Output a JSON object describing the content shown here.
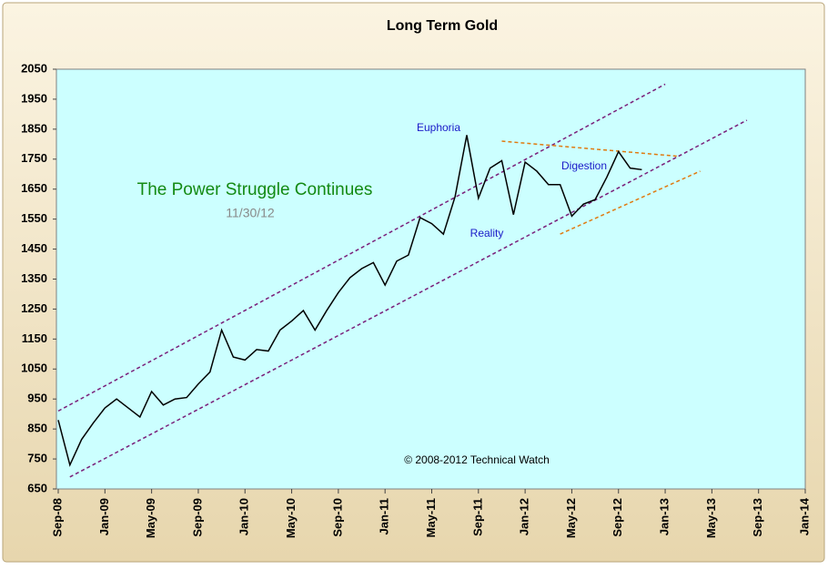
{
  "chart_data": {
    "type": "line",
    "title": "Long Term Gold",
    "annotations": [
      "The Power Struggle Continues",
      "11/30/12",
      "Euphoria",
      "Reality",
      "Digestion",
      "© 2008-2012 Technical Watch"
    ],
    "x": [
      "2008-09",
      "2008-10",
      "2008-11",
      "2008-12",
      "2009-01",
      "2009-02",
      "2009-03",
      "2009-04",
      "2009-05",
      "2009-06",
      "2009-07",
      "2009-08",
      "2009-09",
      "2009-10",
      "2009-11",
      "2009-12",
      "2010-01",
      "2010-02",
      "2010-03",
      "2010-04",
      "2010-05",
      "2010-06",
      "2010-07",
      "2010-08",
      "2010-09",
      "2010-10",
      "2010-11",
      "2010-12",
      "2011-01",
      "2011-02",
      "2011-03",
      "2011-04",
      "2011-05",
      "2011-06",
      "2011-07",
      "2011-08",
      "2011-09",
      "2011-10",
      "2011-11",
      "2011-12",
      "2012-01",
      "2012-02",
      "2012-03",
      "2012-04",
      "2012-05",
      "2012-06",
      "2012-07",
      "2012-08",
      "2012-09",
      "2012-10",
      "2012-11"
    ],
    "values": [
      880,
      730,
      815,
      870,
      920,
      950,
      920,
      890,
      975,
      930,
      950,
      955,
      1000,
      1040,
      1180,
      1090,
      1080,
      1115,
      1110,
      1180,
      1210,
      1245,
      1180,
      1245,
      1305,
      1355,
      1385,
      1405,
      1330,
      1410,
      1430,
      1555,
      1535,
      1500,
      1625,
      1830,
      1620,
      1720,
      1745,
      1565,
      1740,
      1710,
      1665,
      1665,
      1560,
      1600,
      1615,
      1690,
      1775,
      1720,
      1715
    ],
    "color": "#000000",
    "lines": [
      {
        "x": [
          "2008-09",
          "2013-01"
        ],
        "values": [
          910,
          2000
        ],
        "color": "#7a1f7a"
      },
      {
        "x": [
          "2008-10",
          "2013-08"
        ],
        "values": [
          690,
          1880
        ],
        "color": "#7a1f7a"
      },
      {
        "x": [
          "2011-11",
          "2013-02"
        ],
        "values": [
          1810,
          1760
        ],
        "color": "#e07a10"
      },
      {
        "x": [
          "2012-04",
          "2013-04"
        ],
        "values": [
          1500,
          1710
        ],
        "color": "#e07a10"
      }
    ],
    "xlim": [
      "2008-09",
      "2014-01"
    ],
    "xticks": [
      {
        "value": "2008-09",
        "label": "Sep-08"
      },
      {
        "value": "2009-01",
        "label": "Jan-09"
      },
      {
        "value": "2009-05",
        "label": "May-09"
      },
      {
        "value": "2009-09",
        "label": "Sep-09"
      },
      {
        "value": "2010-01",
        "label": "Jan-10"
      },
      {
        "value": "2010-05",
        "label": "May-10"
      },
      {
        "value": "2010-09",
        "label": "Sep-10"
      },
      {
        "value": "2011-01",
        "label": "Jan-11"
      },
      {
        "value": "2011-05",
        "label": "May-11"
      },
      {
        "value": "2011-09",
        "label": "Sep-11"
      },
      {
        "value": "2012-01",
        "label": "Jan-12"
      },
      {
        "value": "2012-05",
        "label": "May-12"
      },
      {
        "value": "2012-09",
        "label": "Sep-12"
      },
      {
        "value": "2013-01",
        "label": "Jan-13"
      },
      {
        "value": "2013-05",
        "label": "May-13"
      },
      {
        "value": "2013-09",
        "label": "Sep-13"
      },
      {
        "value": "2014-01",
        "label": "Jan-14"
      }
    ],
    "ylim": [
      650,
      2050
    ],
    "yticks": [
      650,
      750,
      850,
      950,
      1050,
      1150,
      1250,
      1350,
      1450,
      1550,
      1650,
      1750,
      1850,
      1950,
      2050
    ],
    "grid": false
  }
}
